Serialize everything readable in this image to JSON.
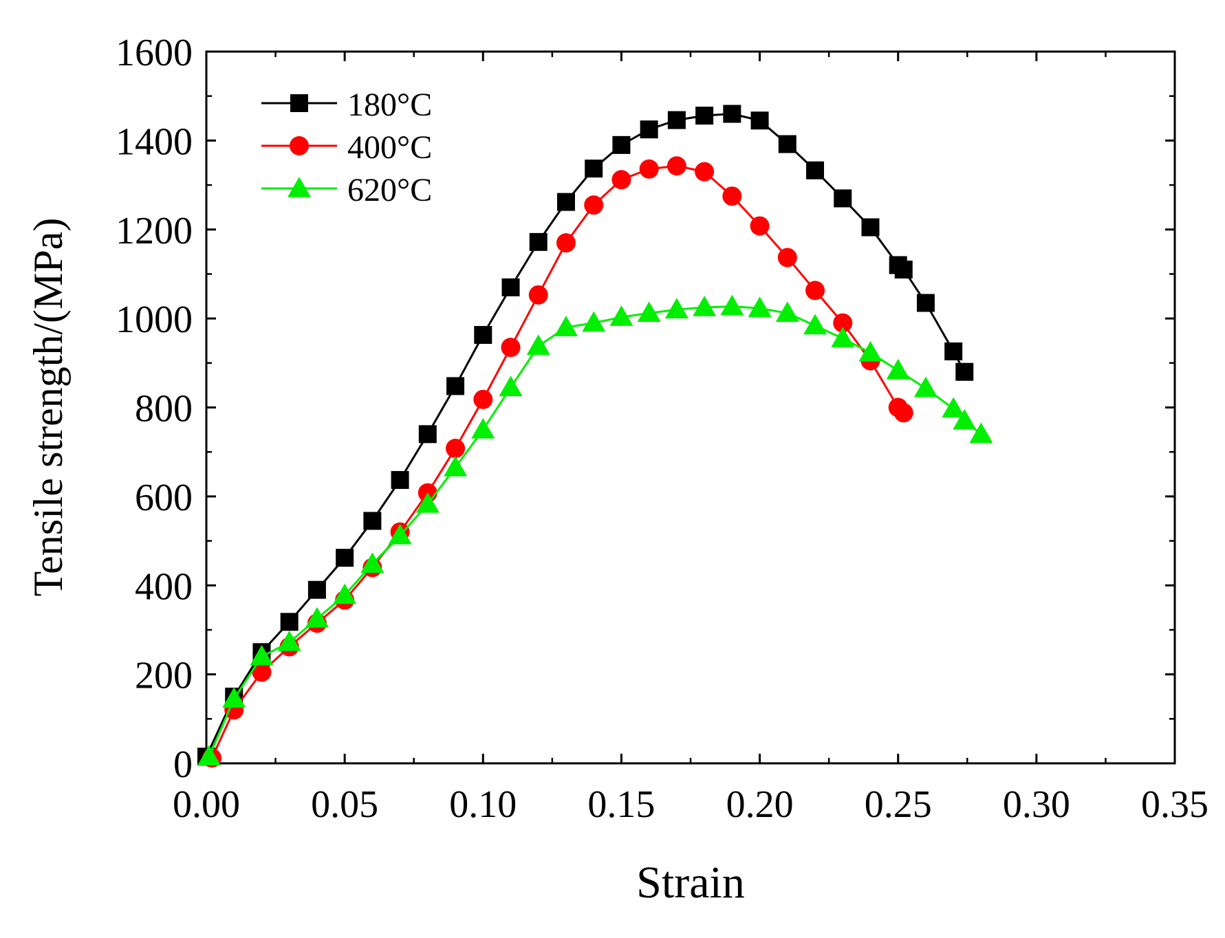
{
  "chart_data": {
    "type": "line",
    "title": "",
    "xlabel": "Strain",
    "ylabel": "Tensile strength/(MPa)",
    "xlim": [
      0.0,
      0.35
    ],
    "ylim": [
      0,
      1600
    ],
    "x_ticks": [
      0.0,
      0.05,
      0.1,
      0.15,
      0.2,
      0.25,
      0.3,
      0.35
    ],
    "x_tick_labels": [
      "0.00",
      "0.05",
      "0.10",
      "0.15",
      "0.20",
      "0.25",
      "0.30",
      "0.35"
    ],
    "y_ticks": [
      0,
      200,
      400,
      600,
      800,
      1000,
      1200,
      1400,
      1600
    ],
    "y_tick_labels": [
      "0",
      "200",
      "400",
      "600",
      "800",
      "1000",
      "1200",
      "1400",
      "1600"
    ],
    "grid": false,
    "legend_position": "top-left",
    "series": [
      {
        "name": "180°C",
        "color": "#000000",
        "marker": "square",
        "x": [
          0.0,
          0.01,
          0.02,
          0.03,
          0.04,
          0.05,
          0.06,
          0.07,
          0.08,
          0.09,
          0.1,
          0.11,
          0.12,
          0.13,
          0.14,
          0.15,
          0.16,
          0.17,
          0.18,
          0.19,
          0.2,
          0.21,
          0.22,
          0.23,
          0.24,
          0.25,
          0.252,
          0.26,
          0.27,
          0.274
        ],
        "y": [
          15,
          150,
          250,
          318,
          390,
          462,
          545,
          637,
          740,
          848,
          963,
          1070,
          1172,
          1262,
          1337,
          1390,
          1425,
          1446,
          1456,
          1460,
          1445,
          1392,
          1333,
          1270,
          1205,
          1120,
          1110,
          1035,
          926,
          880
        ]
      },
      {
        "name": "400°C",
        "color": "#ff0000",
        "marker": "circle",
        "x": [
          0.002,
          0.01,
          0.02,
          0.03,
          0.04,
          0.05,
          0.06,
          0.07,
          0.08,
          0.09,
          0.1,
          0.11,
          0.12,
          0.13,
          0.14,
          0.15,
          0.16,
          0.17,
          0.18,
          0.19,
          0.2,
          0.21,
          0.22,
          0.23,
          0.24,
          0.25,
          0.252
        ],
        "y": [
          12,
          120,
          205,
          262,
          315,
          367,
          440,
          520,
          608,
          708,
          818,
          935,
          1053,
          1170,
          1255,
          1312,
          1336,
          1343,
          1330,
          1275,
          1208,
          1137,
          1063,
          990,
          905,
          800,
          788
        ]
      },
      {
        "name": "620°C",
        "color": "#00ee00",
        "marker": "triangle",
        "x": [
          0.001,
          0.01,
          0.02,
          0.03,
          0.04,
          0.05,
          0.06,
          0.07,
          0.08,
          0.09,
          0.1,
          0.11,
          0.12,
          0.13,
          0.14,
          0.15,
          0.16,
          0.17,
          0.18,
          0.19,
          0.2,
          0.21,
          0.22,
          0.23,
          0.24,
          0.25,
          0.26,
          0.27,
          0.274,
          0.28
        ],
        "y": [
          15,
          145,
          240,
          272,
          325,
          378,
          448,
          512,
          583,
          665,
          750,
          845,
          938,
          980,
          990,
          1003,
          1012,
          1020,
          1025,
          1027,
          1023,
          1012,
          984,
          955,
          923,
          883,
          843,
          797,
          770,
          740
        ]
      }
    ]
  }
}
